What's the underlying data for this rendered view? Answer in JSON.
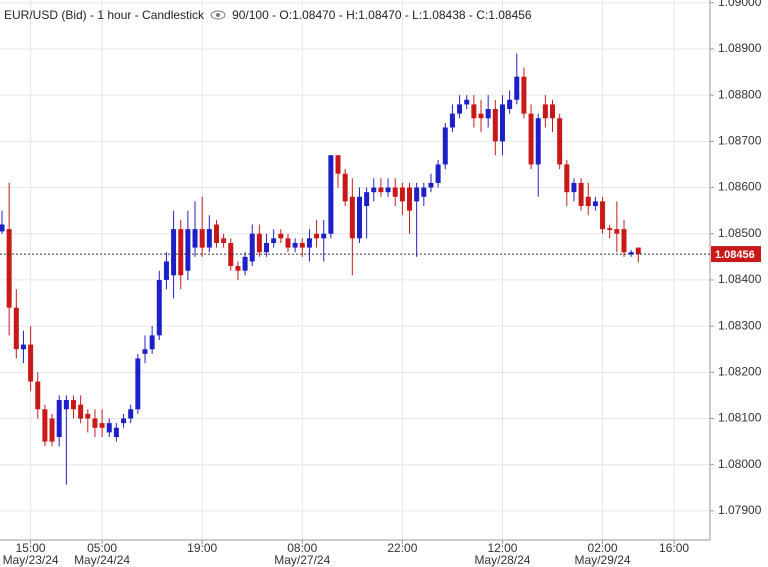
{
  "chart_data": {
    "type": "candlestick",
    "title": "EUR/USD (Bid) - 1 hour - Candlestick",
    "info": "90/100 - O:1.08470 - H:1.08470 - L:1.08438 - C:1.08456",
    "up_color": "#1f1fc8",
    "down_color": "#c81818",
    "grid": true,
    "last_price": 1.08456,
    "last_price_color": "#c81818",
    "xlim": [
      0,
      99
    ],
    "ylim": [
      1.07837,
      1.09006
    ],
    "yticks": [
      {
        "value": 1.09,
        "label": "1.09000"
      },
      {
        "value": 1.089,
        "label": "1.08900"
      },
      {
        "value": 1.088,
        "label": "1.08800"
      },
      {
        "value": 1.087,
        "label": "1.08700"
      },
      {
        "value": 1.086,
        "label": "1.08600"
      },
      {
        "value": 1.085,
        "label": "1.08500"
      },
      {
        "value": 1.084,
        "label": "1.08400"
      },
      {
        "value": 1.083,
        "label": "1.08300"
      },
      {
        "value": 1.082,
        "label": "1.08200"
      },
      {
        "value": 1.081,
        "label": "1.08100"
      },
      {
        "value": 1.08,
        "label": "1.08000"
      },
      {
        "value": 1.079,
        "label": "1.07900"
      }
    ],
    "xticks": [
      {
        "value": 4,
        "label": "15:00",
        "date": "May/23/24"
      },
      {
        "value": 14,
        "label": "05:00",
        "date": "May/24/24"
      },
      {
        "value": 28,
        "label": "19:00"
      },
      {
        "value": 42,
        "label": "08:00",
        "date": "May/27/24"
      },
      {
        "value": 56,
        "label": "22:00"
      },
      {
        "value": 70,
        "label": "12:00",
        "date": "May/28/24"
      },
      {
        "value": 84,
        "label": "02:00",
        "date": "May/29/24"
      },
      {
        "value": 94,
        "label": "16:00"
      }
    ],
    "open": [
      1.08505,
      1.0851,
      1.0834,
      1.0825,
      1.0826,
      1.0818,
      1.0812,
      1.081,
      1.0806,
      1.0812,
      1.0814,
      1.0813,
      1.0811,
      1.081,
      1.0809,
      1.0807,
      1.0806,
      1.0809,
      1.081,
      1.0812,
      1.0824,
      1.0825,
      1.0828,
      1.084,
      1.0841,
      1.0851,
      1.0842,
      1.0847,
      1.0851,
      1.0847,
      1.0852,
      1.0849,
      1.0848,
      1.0843,
      1.0842,
      1.0844,
      1.085,
      1.0846,
      1.0848,
      1.085,
      1.0849,
      1.0847,
      1.0848,
      1.0847,
      1.085,
      1.0849,
      1.085,
      1.0867,
      1.0863,
      1.0858,
      1.0849,
      1.0856,
      1.0859,
      1.086,
      1.0859,
      1.086,
      1.086,
      1.086,
      1.0857,
      1.0858,
      1.086,
      1.0861,
      1.0865,
      1.0873,
      1.0876,
      1.0878,
      1.0878,
      1.0876,
      1.0875,
      1.0877,
      1.087,
      1.0877,
      1.0879,
      1.0884,
      1.0876,
      1.0865,
      1.0878,
      1.0878,
      1.0875,
      1.0865,
      1.0859,
      1.0861,
      1.0858,
      1.0856,
      1.0857,
      1.08512,
      1.0851,
      1.0851,
      1.08455,
      1.0847
    ],
    "high": [
      1.0855,
      1.0861,
      1.0838,
      1.0829,
      1.083,
      1.082,
      1.0813,
      1.0811,
      1.0815,
      1.0815,
      1.0815,
      1.0815,
      1.0812,
      1.0812,
      1.0812,
      1.081,
      1.0809,
      1.0811,
      1.0813,
      1.0824,
      1.0828,
      1.083,
      1.0842,
      1.0846,
      1.0855,
      1.0853,
      1.0855,
      1.0857,
      1.0858,
      1.0854,
      1.0853,
      1.085,
      1.0849,
      1.0844,
      1.0846,
      1.0852,
      1.0852,
      1.085,
      1.0851,
      1.0851,
      1.085,
      1.0849,
      1.0849,
      1.0851,
      1.0853,
      1.0853,
      1.0867,
      1.0867,
      1.0864,
      1.0862,
      1.086,
      1.086,
      1.0862,
      1.0862,
      1.0862,
      1.0862,
      1.0861,
      1.0861,
      1.0861,
      1.0861,
      1.0863,
      1.0866,
      1.0874,
      1.0878,
      1.088,
      1.088,
      1.088,
      1.0879,
      1.088,
      1.0879,
      1.088,
      1.0881,
      1.0889,
      1.0886,
      1.0878,
      1.0876,
      1.088,
      1.0879,
      1.0876,
      1.0866,
      1.0862,
      1.0862,
      1.0861,
      1.0858,
      1.0858,
      1.0852,
      1.0857,
      1.0853,
      1.08465,
      1.0847
    ],
    "low": [
      1.085,
      1.0828,
      1.0823,
      1.0822,
      1.0816,
      1.081,
      1.0804,
      1.0804,
      1.0804,
      1.07957,
      1.081,
      1.0809,
      1.0807,
      1.0806,
      1.0806,
      1.0806,
      1.0805,
      1.0808,
      1.0809,
      1.0811,
      1.0822,
      1.0824,
      1.0827,
      1.0838,
      1.0836,
      1.0838,
      1.084,
      1.0845,
      1.0845,
      1.0846,
      1.0847,
      1.0847,
      1.0842,
      1.084,
      1.0841,
      1.0843,
      1.0845,
      1.0845,
      1.0847,
      1.0848,
      1.0846,
      1.0846,
      1.0845,
      1.0844,
      1.0847,
      1.0844,
      1.0849,
      1.086,
      1.0856,
      1.0841,
      1.0848,
      1.0849,
      1.0857,
      1.0858,
      1.0858,
      1.0856,
      1.0854,
      1.085,
      1.0845,
      1.0856,
      1.0859,
      1.086,
      1.0864,
      1.0872,
      1.0875,
      1.0877,
      1.0873,
      1.0872,
      1.0873,
      1.0867,
      1.0867,
      1.0876,
      1.0878,
      1.0875,
      1.0864,
      1.0858,
      1.0873,
      1.0872,
      1.0864,
      1.0856,
      1.0857,
      1.0855,
      1.0854,
      1.0855,
      1.085,
      1.0849,
      1.0846,
      1.0845,
      1.0845,
      1.08438
    ],
    "close": [
      1.0852,
      1.0834,
      1.0825,
      1.0826,
      1.0818,
      1.0812,
      1.0805,
      1.0805,
      1.0814,
      1.0814,
      1.0812,
      1.081,
      1.081,
      1.0808,
      1.0808,
      1.0809,
      1.0808,
      1.081,
      1.0812,
      1.0823,
      1.0825,
      1.0828,
      1.084,
      1.0844,
      1.0851,
      1.0841,
      1.0851,
      1.0851,
      1.0847,
      1.0851,
      1.0848,
      1.0848,
      1.0843,
      1.0842,
      1.0845,
      1.085,
      1.0846,
      1.0848,
      1.0849,
      1.0849,
      1.0847,
      1.0848,
      1.0847,
      1.0849,
      1.0849,
      1.085,
      1.0867,
      1.0863,
      1.0857,
      1.0849,
      1.0858,
      1.0859,
      1.086,
      1.0859,
      1.086,
      1.0858,
      1.0857,
      1.0855,
      1.086,
      1.086,
      1.0861,
      1.0865,
      1.0873,
      1.0876,
      1.0878,
      1.0879,
      1.0875,
      1.0875,
      1.0877,
      1.087,
      1.0878,
      1.0879,
      1.0884,
      1.0876,
      1.0865,
      1.0875,
      1.0875,
      1.0875,
      1.0865,
      1.0859,
      1.0861,
      1.0856,
      1.0856,
      1.0857,
      1.0851,
      1.08508,
      1.085,
      1.0846,
      1.0846,
      1.08456
    ]
  }
}
